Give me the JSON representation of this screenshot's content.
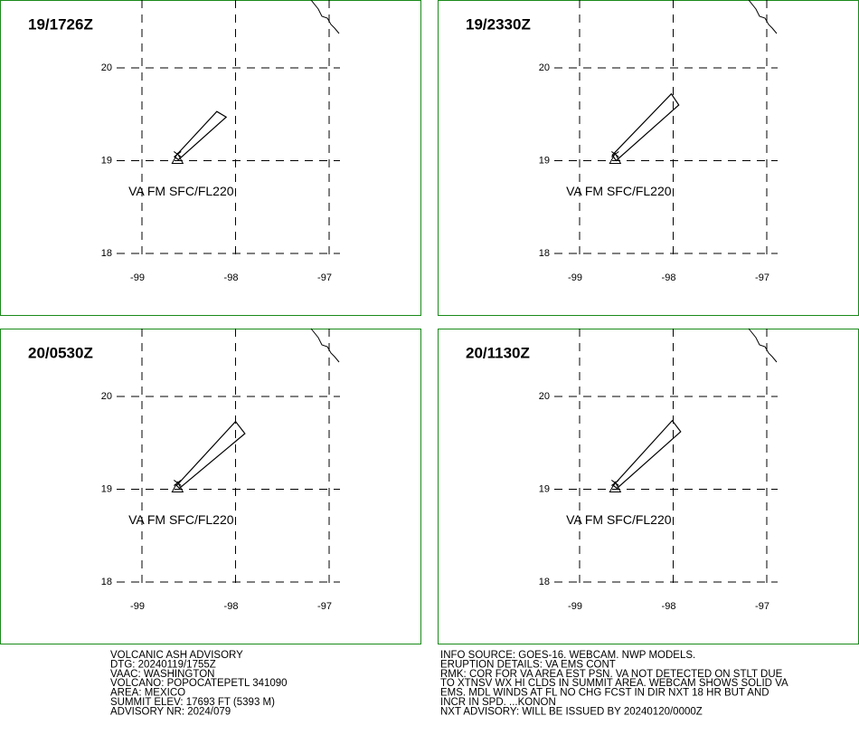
{
  "axes": {
    "xticks": [
      -99,
      -98,
      -97
    ],
    "yticks": [
      18,
      19,
      20
    ]
  },
  "vent": {
    "lon": -98.62,
    "lat": 19.02
  },
  "panels": [
    {
      "time": "19/1726Z",
      "label": "VA FM SFC/FL220",
      "polygon": [
        [
          -98.65,
          19.04
        ],
        [
          -98.2,
          19.53
        ],
        [
          -98.1,
          19.47
        ],
        [
          -98.61,
          19.01
        ]
      ]
    },
    {
      "time": "19/2330Z",
      "label": "VA FM SFC/FL220",
      "polygon": [
        [
          -98.65,
          19.06
        ],
        [
          -98.02,
          19.72
        ],
        [
          -97.94,
          19.6
        ],
        [
          -98.61,
          19.0
        ]
      ]
    },
    {
      "time": "20/0530Z",
      "label": "VA FM SFC/FL220",
      "polygon": [
        [
          -98.63,
          19.04
        ],
        [
          -98.0,
          19.73
        ],
        [
          -97.9,
          19.6
        ],
        [
          -98.6,
          19.01
        ]
      ]
    },
    {
      "time": "20/1130Z",
      "label": "VA FM SFC/FL220",
      "polygon": [
        [
          -98.64,
          19.04
        ],
        [
          -98.01,
          19.74
        ],
        [
          -97.92,
          19.62
        ],
        [
          -98.6,
          19.01
        ]
      ]
    }
  ],
  "advisory_left": [
    "VOLCANIC ASH ADVISORY",
    "DTG: 20240119/1755Z",
    "VAAC: WASHINGTON",
    "VOLCANO: POPOCATEPETL 341090",
    "AREA: MEXICO",
    "SUMMIT ELEV: 17693 FT (5393 M)",
    "ADVISORY NR: 2024/079"
  ],
  "advisory_right": [
    "INFO SOURCE: GOES-16. WEBCAM. NWP MODELS.",
    "ERUPTION DETAILS: VA EMS CONT",
    "RMK: COR FOR VA AREA EST PSN. VA NOT DETECTED ON STLT DUE",
    "TO XTNSV WX HI CLDS IN SUMMIT AREA. WEBCAM SHOWS SOLID VA",
    "EMS. MDL WINDS AT FL NO CHG FCST IN DIR NXT 18 HR BUT AND",
    "INCR IN SPD. ...KONON",
    "NXT ADVISORY: WILL BE ISSUED BY 20240120/0000Z"
  ]
}
